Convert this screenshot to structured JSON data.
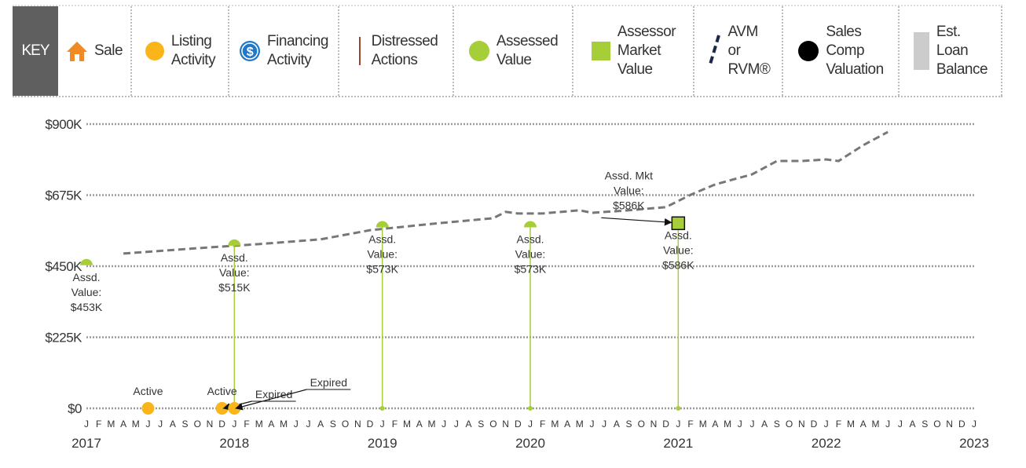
{
  "chart_data": {
    "type": "property-timeline",
    "key": {
      "title": "KEY",
      "items": [
        "Sale",
        "Listing\nActivity",
        "Financing\nActivity",
        "Distressed\nActions",
        "Assessed\nValue",
        "Assessor\nMarket\nValue",
        "AVM\nor\nRVM®",
        "Sales\nComp\nValuation",
        "Est.\nLoan\nBalance"
      ]
    },
    "ylim": [
      0,
      900000
    ],
    "yticks": [
      {
        "value": 0,
        "label": "$0"
      },
      {
        "value": 225000,
        "label": "$225K"
      },
      {
        "value": 450000,
        "label": "$450K"
      },
      {
        "value": 675000,
        "label": "$675K"
      },
      {
        "value": 900000,
        "label": "$900K"
      }
    ],
    "grid": true,
    "xlim": [
      "2017-01",
      "2023-01"
    ],
    "month_labels": [
      "J",
      "F",
      "M",
      "A",
      "M",
      "J",
      "J",
      "A",
      "S",
      "O",
      "N",
      "D",
      "J",
      "F",
      "M",
      "A",
      "M",
      "J",
      "J",
      "A",
      "S",
      "O",
      "N",
      "D",
      "J",
      "F",
      "M",
      "A",
      "M",
      "J",
      "J",
      "A",
      "S",
      "O",
      "N",
      "D",
      "J",
      "F",
      "M",
      "A",
      "M",
      "J",
      "J",
      "A",
      "S",
      "O",
      "N",
      "D",
      "J",
      "F",
      "M",
      "A",
      "M",
      "J",
      "J",
      "A",
      "S",
      "O",
      "N",
      "D",
      "J",
      "F",
      "M",
      "A",
      "M",
      "J",
      "J",
      "A",
      "S",
      "O",
      "N",
      "D",
      "J"
    ],
    "xticks": [
      {
        "value": "2017-01",
        "label": "2017"
      },
      {
        "value": "2018-01",
        "label": "2018"
      },
      {
        "value": "2019-01",
        "label": "2019"
      },
      {
        "value": "2020-01",
        "label": "2020"
      },
      {
        "value": "2021-01",
        "label": "2021"
      },
      {
        "value": "2022-01",
        "label": "2022"
      },
      {
        "value": "2023-01",
        "label": "2023"
      }
    ],
    "avm": {
      "color": "#777777",
      "x": [
        "2017-04",
        "2017-10",
        "2018-03",
        "2018-08",
        "2018-12",
        "2019-05",
        "2019-10",
        "2019-11",
        "2019-12",
        "2020-02",
        "2020-05",
        "2020-06",
        "2020-09",
        "2020-12",
        "2021-02",
        "2021-04",
        "2021-07",
        "2021-09",
        "2021-11",
        "2022-01",
        "2022-02",
        "2022-04",
        "2022-06"
      ],
      "values": [
        490000,
        507000,
        520000,
        535000,
        564000,
        584000,
        602000,
        622000,
        617000,
        617000,
        627000,
        619000,
        627000,
        637000,
        676000,
        709000,
        741000,
        783000,
        783000,
        788000,
        783000,
        833000,
        875000
      ]
    },
    "assessed": {
      "color": "#a6ce39",
      "x": [
        "2017-01",
        "2018-01",
        "2019-01",
        "2020-01",
        "2021-01"
      ],
      "values": [
        453000,
        515000,
        573000,
        573000,
        586000
      ],
      "value_labels": [
        "Assd.\nValue:\n$453K",
        "Assd.\nValue:\n$515K",
        "Assd.\nValue:\n$573K",
        "Assd.\nValue:\n$573K",
        "Assd.\nValue:\n$586K"
      ]
    },
    "market": {
      "color": "#a6ce39",
      "x": [
        "2021-01"
      ],
      "values": [
        586000
      ],
      "value_labels": [
        "Assd. Mkt\nValue:\n$586K"
      ]
    },
    "listing": {
      "color": "#f9b51a",
      "x": [
        "2017-06",
        "2017-12",
        "2017-12",
        "2018-01"
      ],
      "values": [
        0,
        0,
        0,
        0
      ],
      "labels": [
        "Active",
        "Active",
        "Expired",
        "Expired"
      ]
    }
  }
}
